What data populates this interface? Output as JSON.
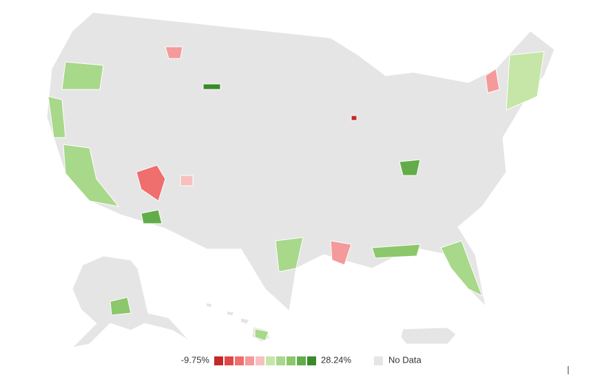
{
  "legend": {
    "min_label": "-9.75%",
    "max_label": "28.24%",
    "no_data_label": "No Data",
    "colors": [
      "#c62828",
      "#e04848",
      "#ef6e6e",
      "#f59a9a",
      "#f8bfbf",
      "#c5e6a6",
      "#a8d88a",
      "#8cc76c",
      "#62ad4a",
      "#3a8a2c"
    ],
    "no_data_color": "#e5e5e5"
  }
}
